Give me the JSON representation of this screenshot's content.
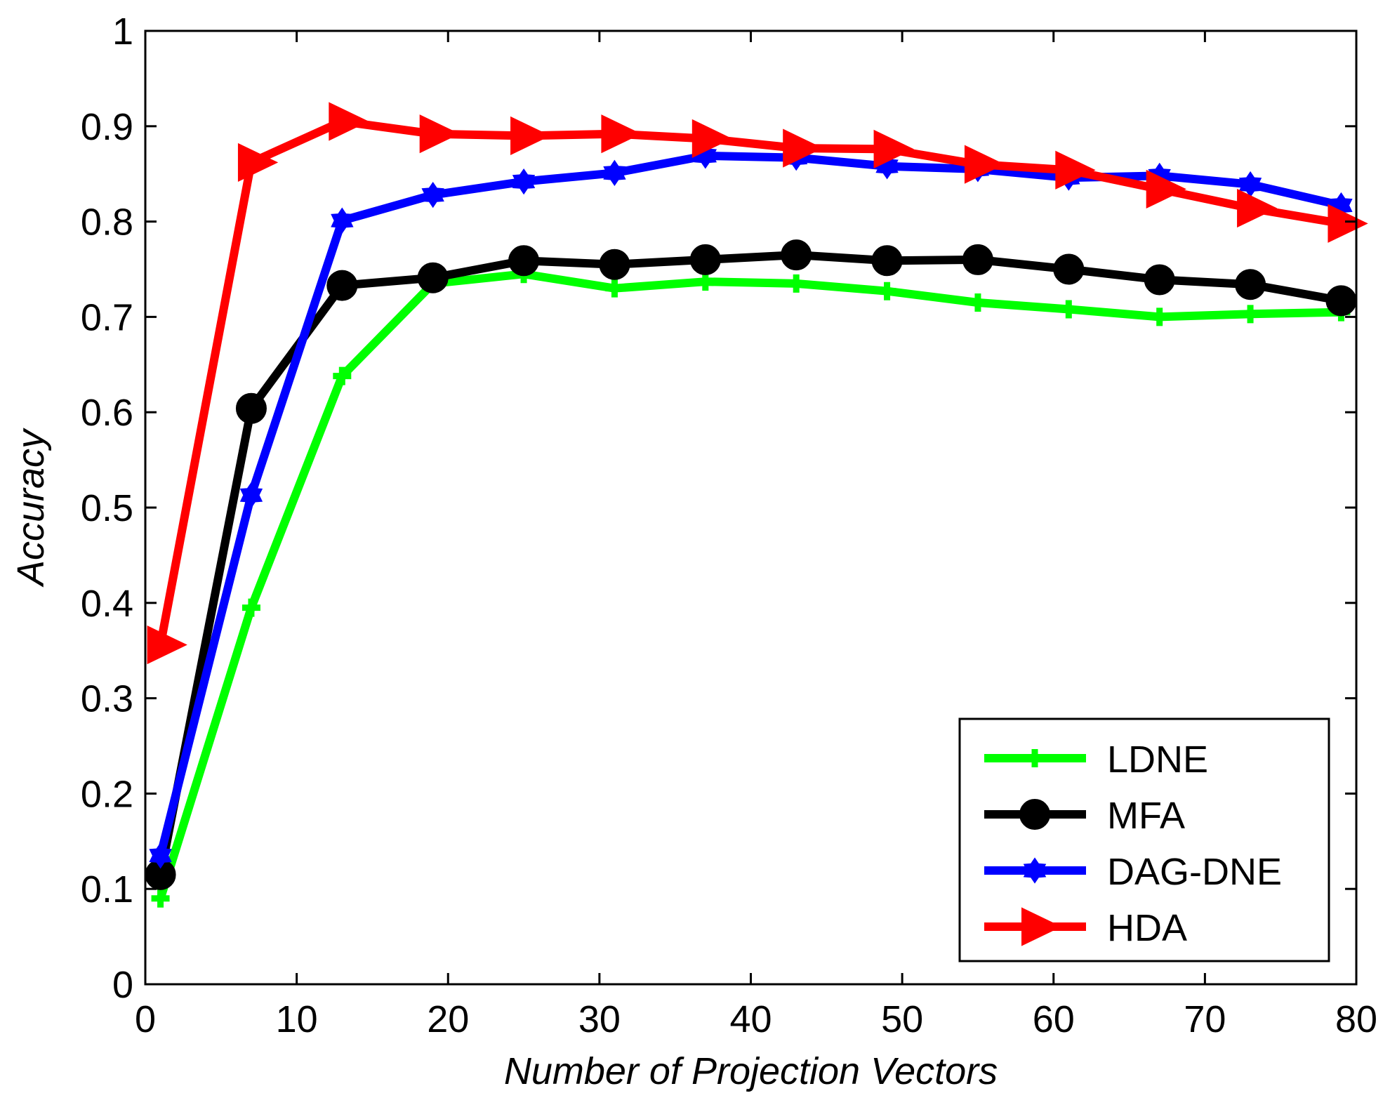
{
  "chart_data": {
    "type": "line",
    "title": "",
    "xlabel": "Number of Projection Vectors",
    "ylabel": "Accuracy",
    "xlim": [
      0,
      80
    ],
    "ylim": [
      0,
      1
    ],
    "xticks": [
      0,
      10,
      20,
      30,
      40,
      50,
      60,
      70,
      80
    ],
    "xtick_labels": [
      "0",
      "10",
      "20",
      "30",
      "40",
      "50",
      "60",
      "70",
      "80"
    ],
    "yticks": [
      0,
      0.1,
      0.2,
      0.3,
      0.4,
      0.5,
      0.6,
      0.7,
      0.8,
      0.9,
      1
    ],
    "ytick_labels": [
      "0",
      "0.1",
      "0.2",
      "0.3",
      "0.4",
      "0.5",
      "0.6",
      "0.7",
      "0.8",
      "0.9",
      "1"
    ],
    "grid": false,
    "legend_position": "bottom-right",
    "x": [
      1,
      7,
      13,
      19,
      25,
      31,
      37,
      43,
      49,
      55,
      61,
      67,
      73,
      79
    ],
    "series": [
      {
        "name": "LDNE",
        "color": "#00ff00",
        "marker": "plus",
        "values": [
          0.09,
          0.395,
          0.638,
          0.735,
          0.745,
          0.73,
          0.737,
          0.735,
          0.727,
          0.715,
          0.708,
          0.7,
          0.703,
          0.705
        ]
      },
      {
        "name": "MFA",
        "color": "#000000",
        "marker": "circle",
        "values": [
          0.115,
          0.604,
          0.733,
          0.741,
          0.759,
          0.755,
          0.76,
          0.765,
          0.759,
          0.76,
          0.75,
          0.739,
          0.734,
          0.717
        ]
      },
      {
        "name": "DAG-DNE",
        "color": "#0000ff",
        "marker": "hexagram",
        "values": [
          0.135,
          0.513,
          0.801,
          0.828,
          0.842,
          0.851,
          0.869,
          0.867,
          0.858,
          0.855,
          0.846,
          0.848,
          0.839,
          0.817
        ]
      },
      {
        "name": "HDA",
        "color": "#ff0000",
        "marker": "triangle-right",
        "values": [
          0.356,
          0.862,
          0.905,
          0.892,
          0.89,
          0.892,
          0.887,
          0.877,
          0.876,
          0.86,
          0.854,
          0.834,
          0.814,
          0.798
        ]
      }
    ]
  }
}
